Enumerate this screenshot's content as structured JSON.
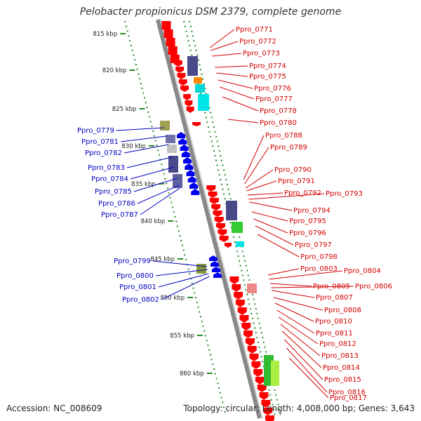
{
  "title": "Pelobacter propionicus DSM 2379, complete genome",
  "accession": "Accession: NC_008609",
  "stats": "Topology: circular; Length: 4,008,000 bp; Genes: 3,643",
  "colors": {
    "forward": "#ff0000",
    "reverse": "#0000ee",
    "backbone": "#999999",
    "tick": "#2a8a2a",
    "label_forward": "#d40000",
    "label_reverse": "#0000c0"
  },
  "scale": {
    "unit": "kbp",
    "ticks": [
      815,
      820,
      825,
      830,
      835,
      840,
      845,
      850,
      855,
      860
    ]
  },
  "forward_labels": [
    "Ppro_0771",
    "Ppro_0772",
    "Ppro_0773",
    "Ppro_0774",
    "Ppro_0775",
    "Ppro_0776",
    "Ppro_0777",
    "Ppro_0778",
    "Ppro_0780",
    "Ppro_0788",
    "Ppro_0789",
    "Ppro_0790",
    "Ppro_0791",
    "Ppro_0792",
    "Ppro_0793",
    "Ppro_0794",
    "Ppro_0795",
    "Ppro_0796",
    "Ppro_0797",
    "Ppro_0798",
    "Ppro_0803",
    "Ppro_0804",
    "Ppro_0805",
    "Ppro_0806",
    "Ppro_0807",
    "Ppro_0808",
    "Ppro_0810",
    "Ppro_0811",
    "Ppro_0812",
    "Ppro_0813",
    "Ppro_0814",
    "Ppro_0815",
    "Ppro_0816",
    "Ppro_0817"
  ],
  "reverse_labels": [
    "Ppro_0779",
    "Ppro_0781",
    "Ppro_0782",
    "Ppro_0783",
    "Ppro_0784",
    "Ppro_0785",
    "Ppro_0786",
    "Ppro_0787",
    "Ppro_0799",
    "Ppro_0800",
    "Ppro_0801",
    "Ppro_0802"
  ]
}
